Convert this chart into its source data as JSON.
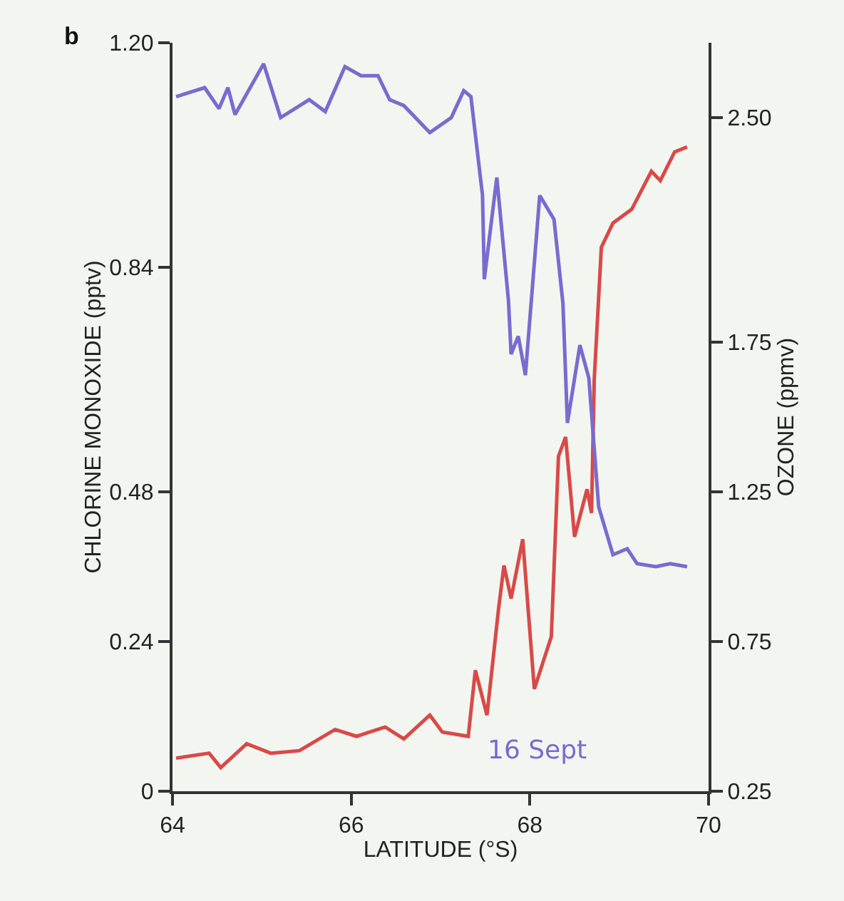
{
  "chart_data": {
    "type": "line",
    "xlabel": "LATITUDE (°S)",
    "ylabel": "CHLORINE MONOXIDE (pptv)",
    "y2label": "OZONE (ppmv)",
    "annotations": [
      "b",
      "16 Sept"
    ],
    "xlim": [
      64,
      70
    ],
    "xticks": [
      64,
      66,
      68,
      70
    ],
    "ylim": [
      0,
      1.2
    ],
    "yticks": [
      0,
      0.24,
      0.48,
      0.84,
      {
        "value": 1.2,
        "label": "1.20"
      }
    ],
    "y2lim": [
      0.25,
      2.75
    ],
    "y2ticks": [
      0.25,
      0.75,
      1.25,
      1.75,
      {
        "value": 2.5,
        "label": "2.50"
      }
    ],
    "grid": false,
    "marker": "none",
    "line_style": "solid",
    "series": [
      {
        "color": "#d84a48",
        "x": [
          64.04,
          64.41,
          64.54,
          64.83,
          65.1,
          65.42,
          65.82,
          66.06,
          66.38,
          66.59,
          66.88,
          67.02,
          67.31,
          67.39,
          67.52,
          67.65,
          67.71,
          67.79,
          67.92,
          68.05,
          68.24,
          68.32,
          68.4,
          68.5,
          68.64,
          68.69,
          68.72,
          68.8,
          68.93,
          69.14,
          69.36,
          69.46,
          69.62,
          69.76
        ],
        "values": [
          0.053,
          0.061,
          0.038,
          0.076,
          0.061,
          0.065,
          0.099,
          0.088,
          0.103,
          0.084,
          0.122,
          0.095,
          0.088,
          0.194,
          0.122,
          0.293,
          0.362,
          0.309,
          0.404,
          0.164,
          0.248,
          0.537,
          0.568,
          0.408,
          0.484,
          0.446,
          0.659,
          0.872,
          0.911,
          0.933,
          0.994,
          0.979,
          1.025,
          1.033
        ]
      },
      {
        "color": "#7a6ad0",
        "axis": "y2",
        "x": [
          64.04,
          64.36,
          64.52,
          64.62,
          64.7,
          65.02,
          65.21,
          65.53,
          65.71,
          65.93,
          66.11,
          66.3,
          66.43,
          66.59,
          66.88,
          67.12,
          67.26,
          67.34,
          67.47,
          67.49,
          67.63,
          67.76,
          67.79,
          67.87,
          67.95,
          68.11,
          68.27,
          68.37,
          68.42,
          68.56,
          68.66,
          68.77,
          68.93,
          69.09,
          69.2,
          69.41,
          69.57,
          69.76
        ],
        "values": [
          2.57,
          2.6,
          2.53,
          2.6,
          2.51,
          2.68,
          2.5,
          2.56,
          2.52,
          2.67,
          2.64,
          2.64,
          2.56,
          2.54,
          2.45,
          2.5,
          2.59,
          2.57,
          2.24,
          1.96,
          2.3,
          1.89,
          1.71,
          1.77,
          1.64,
          2.24,
          2.16,
          1.88,
          1.48,
          1.74,
          1.63,
          1.2,
          1.04,
          1.06,
          1.01,
          1.0,
          1.01,
          1.0
        ]
      }
    ]
  }
}
